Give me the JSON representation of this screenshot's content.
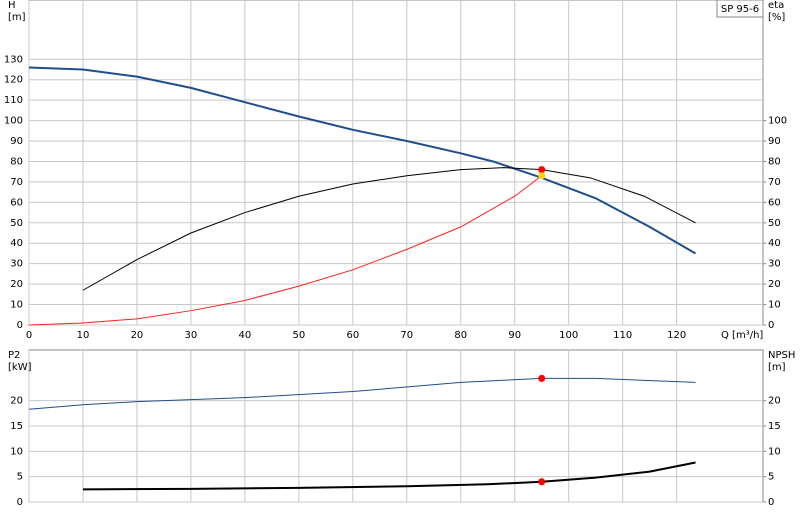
{
  "chart_data": [
    {
      "type": "line",
      "y_label": [
        "H",
        "[m]"
      ],
      "y2_label": [
        "eta",
        "[%]"
      ],
      "x_label": "Q [m³/h]",
      "legend_text": "SP 95-6",
      "xlim": [
        0,
        136
      ],
      "xticks": [
        0,
        10,
        20,
        30,
        40,
        50,
        60,
        70,
        80,
        90,
        100,
        110,
        120
      ],
      "x_tick_labels": true,
      "ylim": [
        0,
        159
      ],
      "yticks": [
        0,
        10,
        20,
        30,
        40,
        50,
        60,
        70,
        80,
        90,
        100,
        110,
        120,
        130
      ],
      "y2lim": [
        0,
        159
      ],
      "y2ticks": [
        0,
        10,
        20,
        30,
        40,
        50,
        60,
        70,
        80,
        90,
        100
      ],
      "grid": true,
      "series": [
        {
          "color": "#1f4e8c",
          "width": 2,
          "x": [
            0,
            10,
            20,
            30,
            40,
            50,
            60,
            70,
            80,
            86,
            95,
            105,
            115,
            123.5
          ],
          "values": [
            126,
            125,
            121.5,
            116,
            109,
            102,
            95.5,
            90,
            84,
            80,
            72,
            62,
            48,
            35
          ]
        },
        {
          "color": "#000000",
          "width": 1,
          "axis": "y2",
          "x": [
            10,
            20,
            30,
            40,
            50,
            60,
            70,
            80,
            88,
            95,
            104,
            114,
            123.5
          ],
          "values": [
            17,
            32,
            45,
            55,
            63,
            69,
            73,
            76,
            77,
            76,
            72,
            63,
            50
          ]
        },
        {
          "color": "#ff2020",
          "width": 1,
          "x": [
            0,
            10,
            20,
            30,
            40,
            50,
            60,
            70,
            80,
            90,
            95
          ],
          "values": [
            0,
            1,
            3,
            7,
            12,
            19,
            27,
            37,
            48,
            63,
            73
          ]
        },
        {
          "color": "#ff0000",
          "marker": "dot",
          "axis": "y2",
          "x": [
            95
          ],
          "values": [
            76
          ]
        },
        {
          "color": "#ffd700",
          "marker": "dot",
          "x": [
            95
          ],
          "values": [
            73
          ]
        }
      ]
    },
    {
      "type": "line",
      "y_label": [
        "P2",
        "[kW]"
      ],
      "y2_label": [
        "NPSH",
        "[m]"
      ],
      "xlim": [
        0,
        136
      ],
      "xticks": [
        0,
        10,
        20,
        30,
        40,
        50,
        60,
        70,
        80,
        90,
        100,
        110,
        120
      ],
      "x_tick_labels": false,
      "ylim": [
        0,
        30
      ],
      "yticks": [
        0,
        5,
        10,
        15,
        20
      ],
      "y2lim": [
        0,
        30
      ],
      "y2ticks": [
        0,
        5,
        10,
        15,
        20
      ],
      "grid": true,
      "series": [
        {
          "color": "#1f4e8c",
          "width": 1,
          "x": [
            0,
            10,
            20,
            40,
            60,
            80,
            95,
            105,
            123.5
          ],
          "values": [
            18.3,
            19.2,
            19.8,
            20.6,
            21.8,
            23.6,
            24.4,
            24.4,
            23.6
          ]
        },
        {
          "color": "#000000",
          "width": 2,
          "axis": "y2",
          "x": [
            10,
            30,
            50,
            70,
            85,
            95,
            105,
            115,
            123.5
          ],
          "values": [
            2.5,
            2.6,
            2.8,
            3.1,
            3.5,
            4.0,
            4.8,
            6.0,
            7.8
          ]
        },
        {
          "color": "#ff0000",
          "marker": "dot",
          "x": [
            95
          ],
          "values": [
            24.4
          ]
        },
        {
          "color": "#ff0000",
          "marker": "dot",
          "axis": "y2",
          "x": [
            95
          ],
          "values": [
            4.0
          ]
        }
      ]
    }
  ]
}
